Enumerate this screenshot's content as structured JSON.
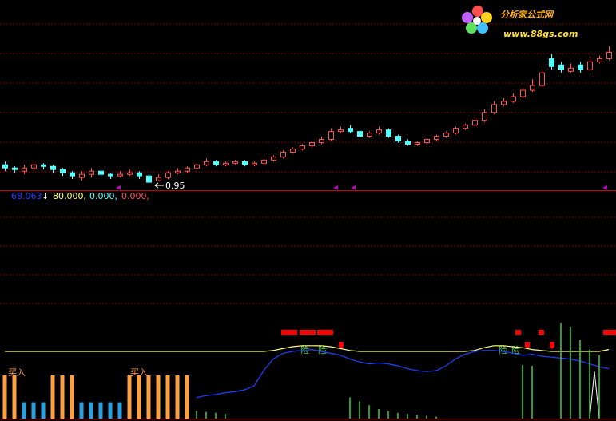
{
  "logo": {
    "name": "分析家公式网",
    "url": "www.88gs.com"
  },
  "chart_data": [
    {
      "type": "candlestick",
      "up_color": "#ff5454",
      "down_color": "#54ffff",
      "ylim": [
        0.9,
        2.1
      ],
      "low_label": "0.95",
      "open": [
        1.06,
        1.04,
        1.02,
        1.04,
        1.06,
        1.05,
        1.03,
        1.01,
        0.98,
        1.0,
        1.02,
        1.0,
        0.99,
        1.0,
        1.01,
        0.99,
        0.96,
        0.98,
        1.01,
        1.02,
        1.04,
        1.06,
        1.08,
        1.06,
        1.07,
        1.08,
        1.06,
        1.07,
        1.09,
        1.11,
        1.14,
        1.16,
        1.18,
        1.2,
        1.22,
        1.27,
        1.29,
        1.27,
        1.24,
        1.26,
        1.28,
        1.24,
        1.21,
        1.19,
        1.2,
        1.22,
        1.24,
        1.26,
        1.29,
        1.31,
        1.34,
        1.39,
        1.44,
        1.46,
        1.49,
        1.53,
        1.56,
        1.73,
        1.69,
        1.65,
        1.69,
        1.66,
        1.71,
        1.73
      ],
      "close": [
        1.04,
        1.03,
        1.04,
        1.06,
        1.05,
        1.03,
        1.01,
        0.99,
        1.0,
        1.02,
        1.0,
        0.99,
        1.0,
        1.01,
        0.99,
        0.95,
        0.98,
        1.01,
        1.02,
        1.04,
        1.06,
        1.08,
        1.06,
        1.07,
        1.08,
        1.06,
        1.07,
        1.09,
        1.11,
        1.14,
        1.16,
        1.18,
        1.2,
        1.22,
        1.27,
        1.28,
        1.27,
        1.24,
        1.26,
        1.28,
        1.24,
        1.21,
        1.19,
        1.2,
        1.22,
        1.24,
        1.26,
        1.29,
        1.31,
        1.34,
        1.39,
        1.44,
        1.46,
        1.49,
        1.53,
        1.56,
        1.64,
        1.68,
        1.66,
        1.67,
        1.66,
        1.71,
        1.73,
        1.77
      ],
      "high": [
        1.08,
        1.05,
        1.06,
        1.08,
        1.07,
        1.06,
        1.04,
        1.02,
        1.02,
        1.04,
        1.03,
        1.01,
        1.02,
        1.03,
        1.02,
        1.0,
        1.0,
        1.02,
        1.04,
        1.05,
        1.07,
        1.1,
        1.09,
        1.08,
        1.09,
        1.09,
        1.08,
        1.1,
        1.12,
        1.15,
        1.17,
        1.19,
        1.21,
        1.24,
        1.29,
        1.3,
        1.31,
        1.28,
        1.27,
        1.3,
        1.29,
        1.25,
        1.22,
        1.21,
        1.23,
        1.25,
        1.27,
        1.3,
        1.32,
        1.36,
        1.41,
        1.46,
        1.48,
        1.51,
        1.55,
        1.6,
        1.66,
        1.76,
        1.71,
        1.7,
        1.71,
        1.74,
        1.75,
        1.81
      ],
      "low": [
        1.02,
        1.01,
        1.0,
        1.02,
        1.03,
        1.01,
        0.99,
        0.97,
        0.96,
        0.98,
        0.98,
        0.97,
        0.98,
        0.99,
        0.97,
        0.95,
        0.96,
        0.97,
        1.0,
        1.01,
        1.03,
        1.05,
        1.05,
        1.05,
        1.06,
        1.05,
        1.05,
        1.06,
        1.08,
        1.1,
        1.13,
        1.15,
        1.17,
        1.19,
        1.21,
        1.26,
        1.26,
        1.23,
        1.23,
        1.25,
        1.23,
        1.2,
        1.18,
        1.18,
        1.19,
        1.21,
        1.23,
        1.25,
        1.28,
        1.3,
        1.33,
        1.38,
        1.43,
        1.45,
        1.48,
        1.52,
        1.55,
        1.66,
        1.64,
        1.64,
        1.64,
        1.65,
        1.7,
        1.72
      ]
    },
    {
      "type": "indicator",
      "ylim": [
        0,
        100
      ],
      "header": [
        "68.063",
        "80.000,",
        "0.000,",
        "0.000,"
      ],
      "buy_labels": [
        "买入",
        "买入"
      ],
      "risk_labels": [
        "险",
        "险",
        "险",
        "险"
      ],
      "series": [
        {
          "color": "#ffff80",
          "kind": "line",
          "values": [
            70,
            70,
            70,
            70,
            70,
            70,
            70,
            70,
            70,
            70,
            70,
            70,
            70,
            70,
            70,
            70,
            70,
            70,
            70,
            70,
            70,
            70,
            70,
            70,
            70,
            70,
            70,
            70,
            71,
            73,
            75,
            76,
            76,
            76,
            75,
            73,
            71,
            70,
            70,
            70,
            70,
            70,
            70,
            70,
            70,
            70,
            70,
            70,
            70,
            71,
            74,
            76,
            76,
            75,
            74,
            72,
            71,
            70,
            70,
            70,
            70,
            70,
            70,
            72
          ]
        },
        {
          "color": "#2040ff",
          "kind": "line",
          "values": [
            null,
            null,
            null,
            null,
            null,
            null,
            null,
            null,
            null,
            null,
            null,
            null,
            null,
            null,
            null,
            null,
            null,
            null,
            null,
            null,
            22,
            24,
            25,
            27,
            28,
            30,
            34,
            50,
            62,
            68,
            70,
            71,
            72,
            70,
            68,
            66,
            62,
            59,
            57,
            58,
            57,
            55,
            52,
            50,
            49,
            50,
            55,
            62,
            67,
            70,
            71,
            71,
            70,
            68,
            66,
            67,
            65,
            64,
            63,
            62,
            60,
            57,
            54,
            52
          ]
        },
        {
          "color": "#ffa040",
          "kind": "bar",
          "values": [
            45,
            45,
            null,
            null,
            null,
            45,
            45,
            45,
            null,
            null,
            null,
            null,
            null,
            45,
            45,
            45,
            45,
            45,
            45,
            45,
            null,
            null,
            null,
            null,
            null,
            null,
            null,
            null,
            null,
            null,
            null,
            null,
            null,
            null,
            null,
            null,
            null,
            null,
            null,
            null,
            null,
            null,
            null,
            null,
            null,
            null,
            null,
            null,
            null,
            null,
            null,
            null,
            null,
            null,
            null,
            null,
            null,
            null,
            null,
            null,
            null,
            null,
            null,
            null
          ]
        },
        {
          "color": "#2aa0e0",
          "kind": "bar",
          "values": [
            null,
            null,
            17,
            17,
            17,
            null,
            null,
            null,
            17,
            17,
            17,
            17,
            17,
            null,
            null,
            null,
            null,
            null,
            null,
            null,
            null,
            null,
            null,
            null,
            null,
            null,
            null,
            null,
            null,
            null,
            null,
            null,
            null,
            null,
            null,
            null,
            null,
            null,
            null,
            null,
            null,
            null,
            null,
            null,
            null,
            null,
            null,
            null,
            null,
            null,
            null,
            null,
            null,
            null,
            null,
            null,
            null,
            null,
            null,
            null,
            null,
            null,
            null,
            null
          ]
        },
        {
          "color": "#40d040",
          "kind": "stick",
          "values": [
            null,
            null,
            null,
            null,
            null,
            null,
            null,
            null,
            null,
            null,
            null,
            null,
            null,
            null,
            null,
            null,
            null,
            null,
            null,
            null,
            8,
            7,
            6,
            5,
            null,
            null,
            null,
            null,
            null,
            null,
            null,
            null,
            null,
            null,
            null,
            null,
            22,
            18,
            14,
            10,
            8,
            6,
            5,
            4,
            3,
            2,
            null,
            null,
            null,
            null,
            null,
            null,
            null,
            null,
            56,
            55,
            null,
            null,
            100,
            96,
            82,
            72,
            66,
            null
          ]
        }
      ]
    }
  ]
}
